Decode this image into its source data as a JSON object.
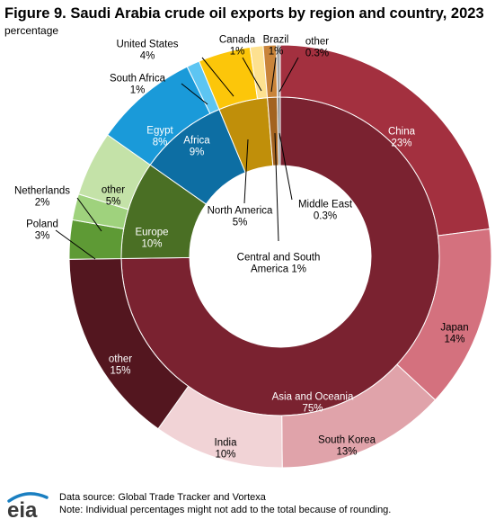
{
  "title": "Figure 9. Saudi Arabia crude oil exports by region and country, 2023",
  "subtitle": "percentage",
  "source_line": "Data source: Global Trade Tracker and Vortexa",
  "note_line": "Note: Individual percentages might not add to the total because of rounding.",
  "logo_text": "eia",
  "chart_data": {
    "type": "pie",
    "style": "nested donut",
    "unit": "percentage",
    "inner_ring": [
      {
        "label": "Asia and Oceania",
        "value": 75,
        "value_label": "75%",
        "color": "#7a2230"
      },
      {
        "label": "Europe",
        "value": 10,
        "value_label": "10%",
        "color": "#4a6f24"
      },
      {
        "label": "Africa",
        "value": 9,
        "value_label": "9%",
        "color": "#0d6ea3"
      },
      {
        "label": "North America",
        "value": 5,
        "value_label": "5%",
        "color": "#c08f0a"
      },
      {
        "label": "Central and South America",
        "value": 1,
        "value_label": "1%",
        "color": "#a36320"
      },
      {
        "label": "Middle East",
        "value": 0.3,
        "value_label": "0.3%",
        "color": "#888888"
      }
    ],
    "outer_ring": [
      {
        "label": "China",
        "value": 23,
        "value_label": "23%",
        "color": "#a3303f",
        "region": "Asia and Oceania"
      },
      {
        "label": "Japan",
        "value": 14,
        "value_label": "14%",
        "color": "#d4717e",
        "region": "Asia and Oceania"
      },
      {
        "label": "South Korea",
        "value": 13,
        "value_label": "13%",
        "color": "#e0a3aa",
        "region": "Asia and Oceania"
      },
      {
        "label": "India",
        "value": 10,
        "value_label": "10%",
        "color": "#f1d3d6",
        "region": "Asia and Oceania"
      },
      {
        "label": "other",
        "value": 15,
        "value_label": "15%",
        "color": "#53161f",
        "region": "Asia and Oceania"
      },
      {
        "label": "Poland",
        "value": 3,
        "value_label": "3%",
        "color": "#5e9a35",
        "region": "Europe"
      },
      {
        "label": "Netherlands",
        "value": 2,
        "value_label": "2%",
        "color": "#9fd27d",
        "region": "Europe"
      },
      {
        "label": "other",
        "value": 5,
        "value_label": "5%",
        "color": "#c4e2a8",
        "region": "Europe"
      },
      {
        "label": "Egypt",
        "value": 8,
        "value_label": "8%",
        "color": "#1a9ad9",
        "region": "Africa"
      },
      {
        "label": "South Africa",
        "value": 1,
        "value_label": "1%",
        "color": "#5dc5f2",
        "region": "Africa"
      },
      {
        "label": "United States",
        "value": 4,
        "value_label": "4%",
        "color": "#fcc60a",
        "region": "North America"
      },
      {
        "label": "Canada",
        "value": 1,
        "value_label": "1%",
        "color": "#fde190",
        "region": "North America"
      },
      {
        "label": "Brazil",
        "value": 1,
        "value_label": "1%",
        "color": "#c9843a",
        "region": "Central and South America"
      },
      {
        "label": "other",
        "value": 0.3,
        "value_label": "0.3%",
        "color": "#a8a8a8",
        "region": "Middle East"
      }
    ]
  }
}
